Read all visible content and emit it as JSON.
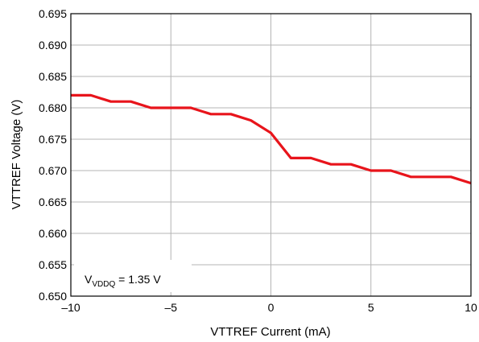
{
  "chart_data": {
    "type": "line",
    "title": "",
    "xlabel": "VTTREF Current (mA)",
    "ylabel": "VTTREF Voltage (V)",
    "xlim": [
      -10,
      10
    ],
    "ylim": [
      0.65,
      0.695
    ],
    "x_ticks": [
      -10,
      -5,
      0,
      5,
      10
    ],
    "x_tick_labels": [
      "–10",
      "–5",
      "0",
      "5",
      "10"
    ],
    "y_ticks": [
      0.65,
      0.655,
      0.66,
      0.665,
      0.67,
      0.675,
      0.68,
      0.685,
      0.69,
      0.695
    ],
    "y_tick_labels": [
      "0.650",
      "0.655",
      "0.660",
      "0.665",
      "0.670",
      "0.675",
      "0.680",
      "0.685",
      "0.690",
      "0.695"
    ],
    "grid": true,
    "legend": "none",
    "series": [
      {
        "color": "#e8141b",
        "x": [
          -10,
          -9,
          -8,
          -7,
          -6,
          -5,
          -4,
          -3,
          -2,
          -1,
          0,
          1,
          2,
          3,
          4,
          5,
          6,
          7,
          8,
          9,
          10
        ],
        "y": [
          0.682,
          0.682,
          0.681,
          0.681,
          0.68,
          0.68,
          0.68,
          0.679,
          0.679,
          0.678,
          0.676,
          0.672,
          0.672,
          0.671,
          0.671,
          0.67,
          0.67,
          0.669,
          0.669,
          0.669,
          0.668
        ]
      }
    ],
    "annotation": {
      "main": "V",
      "sub": "VDDQ",
      "rest": " = 1.35 V"
    }
  }
}
